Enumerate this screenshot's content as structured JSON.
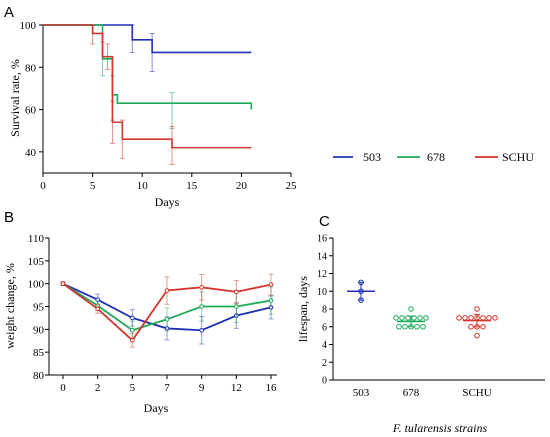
{
  "panels": {
    "a": "A",
    "b": "B",
    "c": "C"
  },
  "legend": [
    {
      "name": "503",
      "color": "#1f2fb4"
    },
    {
      "name": "678",
      "color": "#1eaa5a"
    },
    {
      "name": "SCHU",
      "color": "#d1352b"
    }
  ],
  "chart_data": [
    {
      "type": "line",
      "title": "",
      "xlabel": "Days",
      "ylabel": "Survival rate, %",
      "xlim": [
        0,
        25
      ],
      "ylim": [
        30,
        100
      ],
      "x_ticks": [
        0,
        5,
        10,
        15,
        20,
        25
      ],
      "y_ticks": [
        40,
        60,
        80,
        100
      ],
      "step": true,
      "series": [
        {
          "name": "503",
          "color": "#1f2fb4",
          "x": [
            0,
            9,
            11,
            21
          ],
          "y": [
            100,
            93,
            87,
            87
          ],
          "errors": [
            {
              "x": 9,
              "y": 93,
              "lo": 87,
              "hi": 100
            },
            {
              "x": 11,
              "y": 87,
              "lo": 78,
              "hi": 96
            }
          ]
        },
        {
          "name": "678",
          "color": "#1eaa5a",
          "x": [
            0,
            6,
            7,
            7.5,
            21
          ],
          "y": [
            100,
            84,
            67,
            63,
            60
          ],
          "errors": [
            {
              "x": 6,
              "y": 84,
              "lo": 76,
              "hi": 92
            },
            {
              "x": 7,
              "y": 67,
              "lo": 55,
              "hi": 76
            },
            {
              "x": 13,
              "y": 60,
              "lo": 51,
              "hi": 68
            }
          ]
        },
        {
          "name": "SCHU",
          "color": "#d1352b",
          "x": [
            0,
            5,
            6,
            7,
            8,
            13,
            21
          ],
          "y": [
            100,
            96,
            85,
            54,
            46,
            42,
            42
          ],
          "errors": [
            {
              "x": 5,
              "y": 96,
              "lo": 91,
              "hi": 100
            },
            {
              "x": 6.5,
              "y": 85,
              "lo": 79,
              "hi": 91
            },
            {
              "x": 7,
              "y": 54,
              "lo": 44,
              "hi": 64
            },
            {
              "x": 8,
              "y": 46,
              "lo": 37,
              "hi": 55
            },
            {
              "x": 13,
              "y": 42,
              "lo": 34,
              "hi": 52
            }
          ]
        }
      ]
    },
    {
      "type": "line",
      "title": "",
      "xlabel": "Days",
      "ylabel": "weight change, %",
      "categories": [
        "0",
        "2",
        "5",
        "7",
        "9",
        "12",
        "16"
      ],
      "ylim": [
        80,
        110
      ],
      "y_ticks": [
        80,
        85,
        90,
        95,
        100,
        105,
        110
      ],
      "series": [
        {
          "name": "503",
          "color": "#1f2fb4",
          "values": [
            100,
            96.5,
            92.5,
            90.2,
            89.8,
            93.0,
            94.8
          ],
          "err": [
            0.4,
            1.2,
            1.8,
            2.5,
            3.0,
            2.8,
            2.5
          ]
        },
        {
          "name": "678",
          "color": "#1eaa5a",
          "values": [
            100,
            95.2,
            89.8,
            92.2,
            95.0,
            95.0,
            96.3
          ],
          "err": [
            0.4,
            1.0,
            2.0,
            2.5,
            3.2,
            3.5,
            3.0
          ]
        },
        {
          "name": "SCHU",
          "color": "#d1352b",
          "values": [
            100,
            94.5,
            87.6,
            98.5,
            99.2,
            98.2,
            99.8
          ],
          "err": [
            0.4,
            1.0,
            1.5,
            3.0,
            2.8,
            2.5,
            2.3
          ]
        }
      ]
    },
    {
      "type": "scatter",
      "title": "",
      "xlabel": "F. tularensis strains",
      "ylabel": "lifespan, days",
      "categories": [
        "503",
        "678",
        "SCHU"
      ],
      "ylim": [
        0,
        16
      ],
      "y_ticks": [
        0,
        2,
        4,
        6,
        8,
        10,
        12,
        14,
        16
      ],
      "series": [
        {
          "name": "503",
          "color": "#1f2fb4",
          "points": [
            9,
            10,
            11
          ],
          "mean": 10,
          "err": 1
        },
        {
          "name": "678",
          "color": "#1eaa5a",
          "points": [
            6,
            6,
            6,
            6,
            6,
            7,
            7,
            7,
            7,
            7,
            7,
            8
          ],
          "mean": 6.6,
          "err": 0.6
        },
        {
          "name": "SCHU",
          "color": "#d1352b",
          "points": [
            5,
            6,
            6,
            6,
            7,
            7,
            7,
            7,
            7,
            7,
            7,
            8
          ],
          "mean": 6.7,
          "err": 0.7
        }
      ]
    }
  ]
}
